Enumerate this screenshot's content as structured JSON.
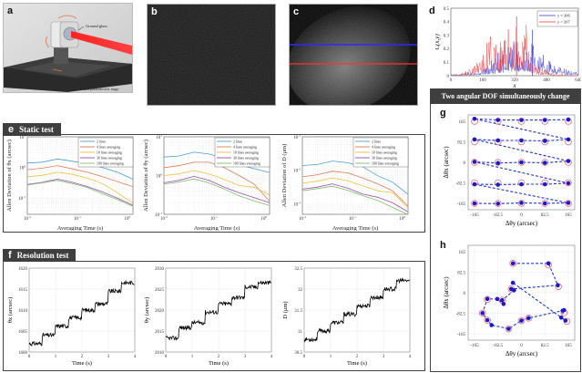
{
  "panels": {
    "a": {
      "letter": "a",
      "labels": {
        "ground_glass": "Ground glass",
        "stage": "6-axis piezoelectric stage"
      }
    },
    "b": {
      "letter": "b"
    },
    "c": {
      "letter": "c",
      "line_colors": {
        "upper": "#2a2aff",
        "lower": "#ff3030"
      }
    },
    "d": {
      "letter": "d"
    },
    "e": {
      "letter": "e",
      "title": "Static test"
    },
    "f": {
      "letter": "f",
      "title": "Resolution test"
    },
    "gh": {
      "title": "Two angular DOF simultaneously change"
    },
    "g": {
      "letter": "g"
    },
    "h": {
      "letter": "h"
    }
  },
  "chart_data": [
    {
      "id": "d",
      "type": "line",
      "xlabel": "x",
      "ylabel": "C(x,y)",
      "xlim": [
        0,
        640
      ],
      "ylim": [
        0,
        0.5
      ],
      "xticks": [
        "0",
        "160",
        "320",
        "480",
        "640"
      ],
      "yticks": [
        "0",
        "0.1",
        "0.2",
        "0.3",
        "0.4",
        "0.5"
      ],
      "legend": "top-right",
      "series": [
        {
          "name": "y = 306",
          "color": "#3333cc",
          "x": [
            0,
            40,
            80,
            120,
            160,
            200,
            240,
            280,
            300,
            320,
            340,
            360,
            380,
            400,
            410,
            420,
            440,
            480,
            520,
            560,
            600,
            640
          ],
          "y": [
            0.01,
            0.01,
            0.02,
            0.03,
            0.05,
            0.08,
            0.12,
            0.18,
            0.2,
            0.22,
            0.2,
            0.18,
            0.2,
            0.16,
            0.34,
            0.14,
            0.12,
            0.1,
            0.08,
            0.05,
            0.03,
            0.02
          ]
        },
        {
          "name": "y = 207",
          "color": "#ee3333",
          "x": [
            0,
            40,
            80,
            120,
            160,
            200,
            240,
            280,
            300,
            320,
            330,
            340,
            360,
            380,
            400,
            420,
            440,
            480,
            520,
            560,
            600,
            640
          ],
          "y": [
            0.0,
            0.01,
            0.03,
            0.08,
            0.14,
            0.27,
            0.24,
            0.26,
            0.28,
            0.3,
            0.44,
            0.28,
            0.26,
            0.3,
            0.14,
            0.08,
            0.05,
            0.03,
            0.01,
            0.01,
            0.0,
            0.0
          ]
        }
      ]
    },
    {
      "id": "e1",
      "type": "line",
      "xscale": "log",
      "yscale": "log",
      "xlabel": "Averaging Time (s)",
      "ylabel": "Allen Deviation of θx (arcsec)",
      "xlim": [
        0.01,
        1.3
      ],
      "ylim": [
        0.03,
        10
      ],
      "xticks": [
        "10^-2",
        "10^-1",
        "10^0"
      ],
      "yticks": [
        "10^-1",
        "10^0",
        "10^1"
      ],
      "legend": "top-right",
      "x": [
        0.01,
        0.02,
        0.04,
        0.08,
        0.16,
        0.32,
        0.64,
        1.28
      ],
      "series": [
        {
          "name": "2 lines",
          "color": "#4a9fd8",
          "values": [
            1.4,
            1.5,
            1.9,
            1.6,
            1.3,
            1.0,
            0.7,
            0.42
          ]
        },
        {
          "name": "4 lines averaging",
          "color": "#e07a55",
          "values": [
            0.85,
            0.95,
            1.15,
            0.9,
            0.7,
            0.5,
            0.35,
            0.24
          ]
        },
        {
          "name": "10 lines averaging",
          "color": "#f0c040",
          "values": [
            0.5,
            0.56,
            0.7,
            0.6,
            0.45,
            0.3,
            0.15,
            0.07
          ]
        },
        {
          "name": "30 lines averaging",
          "color": "#9b4fb3",
          "values": [
            0.28,
            0.33,
            0.42,
            0.33,
            0.24,
            0.16,
            0.1,
            0.06
          ]
        },
        {
          "name": "100 lines averaging",
          "color": "#7cc06a",
          "values": [
            0.27,
            0.32,
            0.38,
            0.3,
            0.22,
            0.14,
            0.09,
            0.055
          ]
        }
      ]
    },
    {
      "id": "e2",
      "type": "line",
      "xscale": "log",
      "yscale": "log",
      "xlabel": "Averaging Time (s)",
      "ylabel": "Allen Deviation of θy (arcsec)",
      "xlim": [
        0.01,
        1.3
      ],
      "ylim": [
        0.1,
        10
      ],
      "xticks": [
        "10^-2",
        "10^-1",
        "10^0"
      ],
      "yticks": [
        "10^-1",
        "10^0",
        "10^1"
      ],
      "legend": "top-right",
      "x": [
        0.01,
        0.02,
        0.04,
        0.08,
        0.16,
        0.32,
        0.64,
        1.28
      ],
      "series": [
        {
          "name": "2 lines",
          "color": "#4a9fd8",
          "values": [
            3.0,
            3.2,
            4.0,
            3.6,
            2.8,
            1.9,
            1.5,
            1.2
          ]
        },
        {
          "name": "4 lines averaging",
          "color": "#e07a55",
          "values": [
            1.6,
            1.8,
            2.2,
            2.2,
            1.6,
            1.0,
            0.6,
            0.22
          ]
        },
        {
          "name": "10 lines averaging",
          "color": "#f0c040",
          "values": [
            1.0,
            1.1,
            1.35,
            1.1,
            0.8,
            0.55,
            0.5,
            0.32
          ]
        },
        {
          "name": "30 lines averaging",
          "color": "#9b4fb3",
          "values": [
            0.65,
            0.75,
            0.95,
            0.75,
            0.5,
            0.36,
            0.27,
            0.2
          ]
        },
        {
          "name": "100 lines averaging",
          "color": "#7cc06a",
          "values": [
            0.6,
            0.68,
            0.82,
            0.65,
            0.45,
            0.3,
            0.22,
            0.17
          ]
        }
      ]
    },
    {
      "id": "e3",
      "type": "line",
      "xscale": "log",
      "yscale": "log",
      "xlabel": "Averaging Time (s)",
      "ylabel": "Allen Deviation of D (μm)",
      "xlim": [
        0.01,
        1.3
      ],
      "ylim": [
        0.0005,
        0.1
      ],
      "xticks": [
        "10^-2",
        "10^-1",
        "10^0"
      ],
      "yticks": [
        "10^-3",
        "10^-2",
        "10^-1"
      ],
      "legend": "top-right",
      "x": [
        0.01,
        0.02,
        0.04,
        0.08,
        0.16,
        0.32,
        0.64,
        1.28
      ],
      "series": [
        {
          "name": "2 lines",
          "color": "#4a9fd8",
          "values": [
            0.014,
            0.015,
            0.019,
            0.017,
            0.013,
            0.007,
            0.0045,
            0.002
          ]
        },
        {
          "name": "4 lines averaging",
          "color": "#e07a55",
          "values": [
            0.0065,
            0.0075,
            0.0095,
            0.0085,
            0.006,
            0.004,
            0.0025,
            0.0009
          ]
        },
        {
          "name": "10 lines averaging",
          "color": "#f0c040",
          "values": [
            0.0042,
            0.0048,
            0.006,
            0.005,
            0.0035,
            0.0025,
            0.0022,
            0.0008
          ]
        },
        {
          "name": "30 lines averaging",
          "color": "#9b4fb3",
          "values": [
            0.0028,
            0.0032,
            0.004,
            0.003,
            0.002,
            0.0016,
            0.0011,
            0.0006
          ]
        },
        {
          "name": "100 lines averaging",
          "color": "#7cc06a",
          "values": [
            0.0025,
            0.0029,
            0.0034,
            0.0026,
            0.0018,
            0.0013,
            0.0008,
            0.0005
          ]
        }
      ]
    },
    {
      "id": "f1",
      "type": "line",
      "xlabel": "Time (s)",
      "ylabel": "θx (arcsec)",
      "xlim": [
        0,
        4
      ],
      "ylim": [
        1600,
        1620
      ],
      "xticks": [
        "0",
        "1",
        "2",
        "3",
        "4"
      ],
      "yticks": [
        "1600",
        "1605",
        "1610",
        "1615",
        "1620"
      ],
      "steps": {
        "step_interval_s": 0.5,
        "levels": [
          1602,
          1604,
          1606.2,
          1608.2,
          1610,
          1611.5,
          1614.5,
          1616.5
        ]
      }
    },
    {
      "id": "f2",
      "type": "line",
      "xlabel": "Time (s)",
      "ylabel": "θy (arcsec)",
      "xlim": [
        0,
        4
      ],
      "ylim": [
        2010,
        2030
      ],
      "xticks": [
        "0",
        "1",
        "2",
        "3",
        "4"
      ],
      "yticks": [
        "2010",
        "2015",
        "2020",
        "2025",
        "2030"
      ],
      "steps": {
        "step_interval_s": 0.5,
        "levels": [
          2013.3,
          2015.8,
          2017,
          2019.5,
          2021.5,
          2023,
          2025.5,
          2026.5
        ]
      }
    },
    {
      "id": "f3",
      "type": "line",
      "xlabel": "Time (s)",
      "ylabel": "D (μm)",
      "xlim": [
        0,
        4
      ],
      "ylim": [
        30.5,
        32.5
      ],
      "xticks": [
        "0",
        "1",
        "2",
        "3",
        "4"
      ],
      "yticks": [
        "30.5",
        "31",
        "31.5",
        "32",
        "32.5"
      ],
      "steps": {
        "step_interval_s": 0.5,
        "levels": [
          30.8,
          31.0,
          31.2,
          31.4,
          31.6,
          31.8,
          32.0,
          32.2
        ]
      }
    },
    {
      "id": "g",
      "type": "scatter",
      "xlabel": "Δθy (arcsec)",
      "ylabel": "Δθx (arcsec)",
      "xlim": [
        -200,
        200
      ],
      "ylim": [
        -200,
        200
      ],
      "xticks": [
        "-165",
        "-82.5",
        "0",
        "82.5",
        "165"
      ],
      "yticks": [
        "-165",
        "-82.5",
        "0",
        "82.5",
        "165"
      ],
      "targets": [
        [
          -165,
          165
        ],
        [
          -82.5,
          165
        ],
        [
          0,
          165
        ],
        [
          82.5,
          165
        ],
        [
          165,
          165
        ],
        [
          -165,
          82.5
        ],
        [
          -82.5,
          82.5
        ],
        [
          0,
          82.5
        ],
        [
          82.5,
          82.5
        ],
        [
          165,
          82.5
        ],
        [
          -165,
          0
        ],
        [
          -82.5,
          0
        ],
        [
          0,
          0
        ],
        [
          82.5,
          0
        ],
        [
          165,
          0
        ],
        [
          -165,
          -82.5
        ],
        [
          -82.5,
          -82.5
        ],
        [
          0,
          -82.5
        ],
        [
          82.5,
          -82.5
        ],
        [
          165,
          -82.5
        ],
        [
          -165,
          -165
        ],
        [
          -82.5,
          -165
        ],
        [
          0,
          -165
        ],
        [
          82.5,
          -165
        ],
        [
          165,
          -165
        ]
      ],
      "measured": [
        [
          -165,
          -165
        ],
        [
          -82.5,
          -166
        ],
        [
          0,
          -163
        ],
        [
          82.5,
          -165
        ],
        [
          165,
          -163
        ],
        [
          -165,
          -88
        ],
        [
          -82.5,
          -90
        ],
        [
          0,
          -88
        ],
        [
          82.5,
          -88
        ],
        [
          165,
          -84
        ],
        [
          -165,
          2
        ],
        [
          -82.5,
          -3
        ],
        [
          0,
          0
        ],
        [
          82.5,
          -2
        ],
        [
          165,
          5
        ],
        [
          -165,
          92
        ],
        [
          -82.5,
          88
        ],
        [
          0,
          88
        ],
        [
          82.5,
          86
        ],
        [
          165,
          92
        ],
        [
          -165,
          175
        ],
        [
          -82.5,
          170
        ],
        [
          0,
          170
        ],
        [
          82.5,
          170
        ],
        [
          165,
          172
        ]
      ]
    },
    {
      "id": "h",
      "type": "scatter",
      "xlabel": "Δθy (arcsec)",
      "ylabel": "Δθx (arcsec)",
      "xlim": [
        -200,
        200
      ],
      "ylim": [
        -200,
        200
      ],
      "xticks": [
        "-165",
        "-82.5",
        "0",
        "82.5",
        "165"
      ],
      "yticks": [
        "-165",
        "-82.5",
        "0",
        "82.5",
        "165"
      ],
      "measured": [
        [
          -30,
          118
        ],
        [
          95,
          118
        ],
        [
          128,
          30
        ],
        [
          -36,
          15
        ],
        [
          -26,
          10
        ],
        [
          -68,
          -30
        ],
        [
          -63,
          -45
        ],
        [
          -85,
          -25
        ],
        [
          -120,
          -25
        ],
        [
          -137,
          -82
        ],
        [
          -120,
          -110
        ],
        [
          -105,
          -130
        ],
        [
          -45,
          -145
        ],
        [
          0,
          -112
        ],
        [
          25,
          -102
        ],
        [
          145,
          -72
        ],
        [
          150,
          -70
        ],
        [
          140,
          -100
        ],
        [
          155,
          -112
        ],
        [
          -30,
          40
        ]
      ],
      "targets": [
        [
          -30,
          118
        ],
        [
          95,
          112
        ],
        [
          130,
          25
        ],
        [
          -36,
          15
        ],
        [
          -68,
          -30
        ],
        [
          -120,
          -27
        ],
        [
          -137,
          -82
        ],
        [
          -120,
          -110
        ],
        [
          -45,
          -145
        ],
        [
          0,
          -112
        ],
        [
          25,
          -102
        ],
        [
          150,
          -80
        ],
        [
          160,
          -115
        ]
      ]
    }
  ]
}
